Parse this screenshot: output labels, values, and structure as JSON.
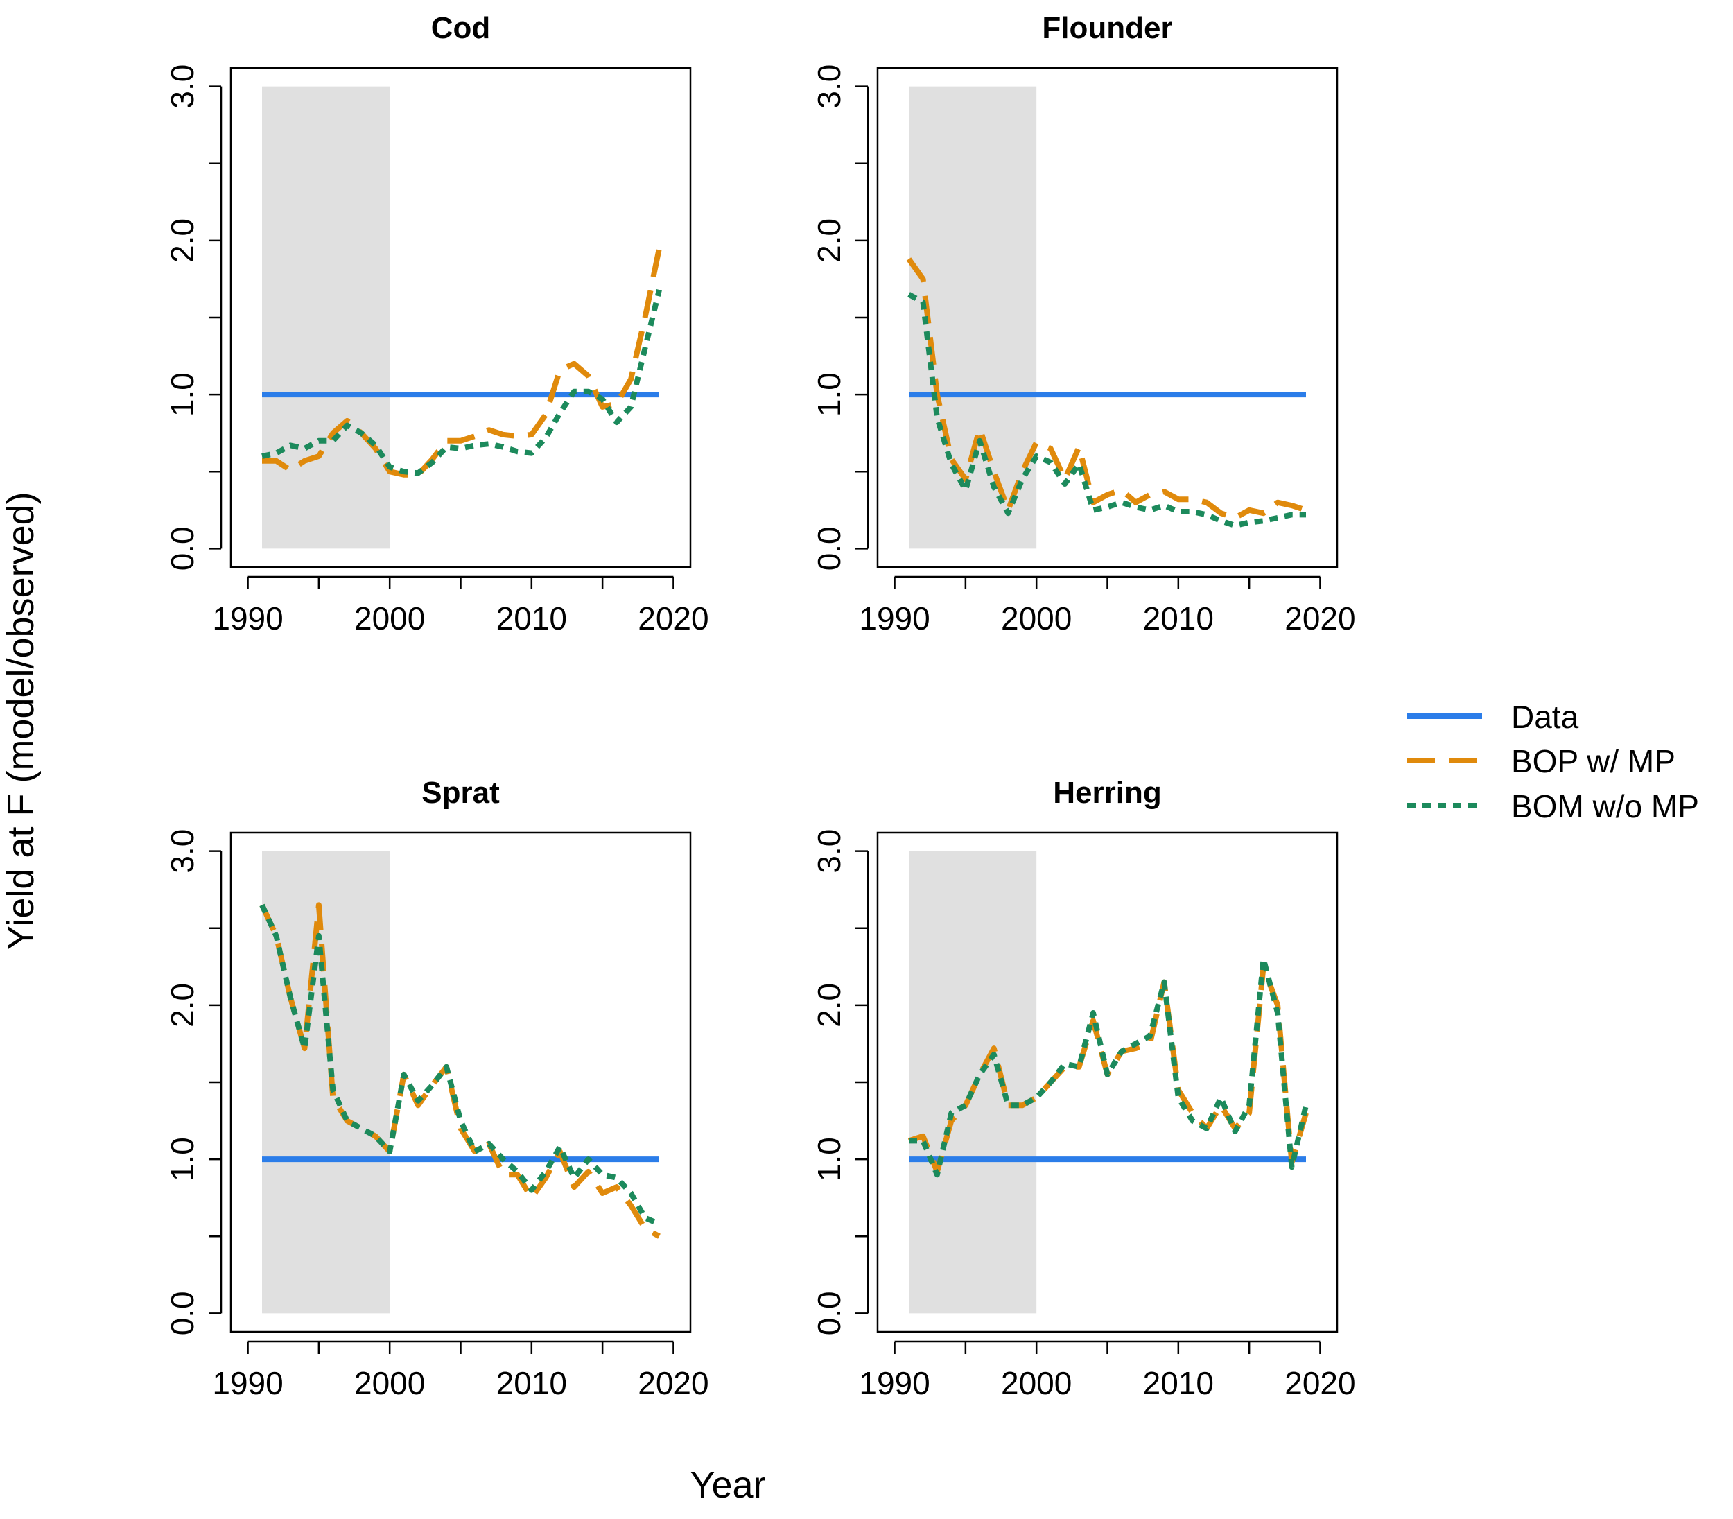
{
  "figure": {
    "ylabel": "Yield at F (model/observed)",
    "xlabel": "Year"
  },
  "legend": {
    "position": "right-center",
    "items": [
      {
        "label": "Data",
        "color": "#2b7de9",
        "style": "solid"
      },
      {
        "label": "BOP w/ MP",
        "color": "#e08a0c",
        "style": "dashed"
      },
      {
        "label": "BOM w/o MP",
        "color": "#1c8a5c",
        "style": "dotted"
      }
    ]
  },
  "chart_data": [
    {
      "type": "line",
      "title": "Cod",
      "xlim": [
        1990,
        2020
      ],
      "ylim": [
        0,
        3
      ],
      "xticks": [
        "1990",
        "2000",
        "2010",
        "2020"
      ],
      "yticks": [
        "0.0",
        "1.0",
        "2.0",
        "3.0"
      ],
      "shaded_period": [
        1991,
        2000
      ],
      "x": [
        1991,
        1992,
        1993,
        1994,
        1995,
        1996,
        1997,
        1998,
        1999,
        2000,
        2001,
        2002,
        2003,
        2004,
        2005,
        2006,
        2007,
        2008,
        2009,
        2010,
        2011,
        2012,
        2013,
        2014,
        2015,
        2016,
        2017,
        2018,
        2019
      ],
      "series": [
        {
          "name": "Data",
          "values": [
            1,
            1,
            1,
            1,
            1,
            1,
            1,
            1,
            1,
            1,
            1,
            1,
            1,
            1,
            1,
            1,
            1,
            1,
            1,
            1,
            1,
            1,
            1,
            1,
            1,
            1,
            1,
            1,
            1
          ]
        },
        {
          "name": "BOP w/ MP",
          "values": [
            0.57,
            0.57,
            0.51,
            0.57,
            0.6,
            0.75,
            0.83,
            0.75,
            0.65,
            0.5,
            0.48,
            0.48,
            0.58,
            0.7,
            0.7,
            0.73,
            0.77,
            0.74,
            0.73,
            0.74,
            0.87,
            1.16,
            1.2,
            1.12,
            0.92,
            0.94,
            1.1,
            1.5,
            1.95
          ]
        },
        {
          "name": "BOM w/o MP",
          "values": [
            0.6,
            0.62,
            0.67,
            0.65,
            0.7,
            0.7,
            0.8,
            0.75,
            0.67,
            0.53,
            0.5,
            0.49,
            0.56,
            0.66,
            0.65,
            0.67,
            0.68,
            0.66,
            0.63,
            0.62,
            0.72,
            0.88,
            1.02,
            1.02,
            0.97,
            0.82,
            0.92,
            1.3,
            1.68
          ]
        }
      ]
    },
    {
      "type": "line",
      "title": "Flounder",
      "xlim": [
        1990,
        2020
      ],
      "ylim": [
        0,
        3
      ],
      "xticks": [
        "1990",
        "2000",
        "2010",
        "2020"
      ],
      "yticks": [
        "0.0",
        "1.0",
        "2.0",
        "3.0"
      ],
      "shaded_period": [
        1991,
        2000
      ],
      "x": [
        1991,
        1992,
        1993,
        1994,
        1995,
        1996,
        1997,
        1998,
        1999,
        2000,
        2001,
        2002,
        2003,
        2004,
        2005,
        2006,
        2007,
        2008,
        2009,
        2010,
        2011,
        2012,
        2013,
        2014,
        2015,
        2016,
        2017,
        2018,
        2019
      ],
      "series": [
        {
          "name": "Data",
          "values": [
            1,
            1,
            1,
            1,
            1,
            1,
            1,
            1,
            1,
            1,
            1,
            1,
            1,
            1,
            1,
            1,
            1,
            1,
            1,
            1,
            1,
            1,
            1,
            1,
            1,
            1,
            1,
            1,
            1
          ]
        },
        {
          "name": "BOP w/ MP",
          "values": [
            1.88,
            1.75,
            1.0,
            0.58,
            0.45,
            0.78,
            0.5,
            0.25,
            0.5,
            0.69,
            0.65,
            0.45,
            0.66,
            0.3,
            0.35,
            0.38,
            0.3,
            0.35,
            0.37,
            0.32,
            0.32,
            0.3,
            0.23,
            0.2,
            0.25,
            0.23,
            0.3,
            0.28,
            0.25
          ]
        },
        {
          "name": "BOM w/o MP",
          "values": [
            1.65,
            1.6,
            0.85,
            0.55,
            0.38,
            0.7,
            0.4,
            0.23,
            0.45,
            0.6,
            0.56,
            0.42,
            0.55,
            0.25,
            0.27,
            0.3,
            0.27,
            0.25,
            0.28,
            0.24,
            0.24,
            0.22,
            0.18,
            0.15,
            0.17,
            0.18,
            0.2,
            0.22,
            0.22
          ]
        }
      ]
    },
    {
      "type": "line",
      "title": "Sprat",
      "xlim": [
        1990,
        2020
      ],
      "ylim": [
        0,
        3
      ],
      "xticks": [
        "1990",
        "2000",
        "2010",
        "2020"
      ],
      "yticks": [
        "0.0",
        "1.0",
        "2.0",
        "3.0"
      ],
      "shaded_period": [
        1991,
        2000
      ],
      "x": [
        1991,
        1992,
        1993,
        1994,
        1995,
        1996,
        1997,
        1998,
        1999,
        2000,
        2001,
        2002,
        2003,
        2004,
        2005,
        2006,
        2007,
        2008,
        2009,
        2010,
        2011,
        2012,
        2013,
        2014,
        2015,
        2016,
        2017,
        2018,
        2019
      ],
      "series": [
        {
          "name": "Data",
          "values": [
            1,
            1,
            1,
            1,
            1,
            1,
            1,
            1,
            1,
            1,
            1,
            1,
            1,
            1,
            1,
            1,
            1,
            1,
            1,
            1,
            1,
            1,
            1,
            1,
            1,
            1,
            1,
            1,
            1
          ]
        },
        {
          "name": "BOP w/ MP",
          "values": [
            2.65,
            2.45,
            2.05,
            1.72,
            2.65,
            1.4,
            1.25,
            1.2,
            1.15,
            1.05,
            1.55,
            1.35,
            1.48,
            1.6,
            1.2,
            1.05,
            1.1,
            0.9,
            0.9,
            0.75,
            0.88,
            1.05,
            0.82,
            0.92,
            0.78,
            0.82,
            0.7,
            0.55,
            0.5
          ]
        },
        {
          "name": "BOM w/o MP",
          "values": [
            2.65,
            2.45,
            2.05,
            1.72,
            2.45,
            1.45,
            1.25,
            1.2,
            1.15,
            1.05,
            1.55,
            1.38,
            1.48,
            1.6,
            1.25,
            1.05,
            1.1,
            1.0,
            0.92,
            0.8,
            0.92,
            1.08,
            0.88,
            1.0,
            0.9,
            0.88,
            0.78,
            0.62,
            0.58
          ]
        }
      ]
    },
    {
      "type": "line",
      "title": "Herring",
      "xlim": [
        1990,
        2020
      ],
      "ylim": [
        0,
        3
      ],
      "xticks": [
        "1990",
        "2000",
        "2010",
        "2020"
      ],
      "yticks": [
        "0.0",
        "1.0",
        "2.0",
        "3.0"
      ],
      "shaded_period": [
        1991,
        2000
      ],
      "x": [
        1991,
        1992,
        1993,
        1994,
        1995,
        1996,
        1997,
        1998,
        1999,
        2000,
        2001,
        2002,
        2003,
        2004,
        2005,
        2006,
        2007,
        2008,
        2009,
        2010,
        2011,
        2012,
        2013,
        2014,
        2015,
        2016,
        2017,
        2018,
        2019
      ],
      "series": [
        {
          "name": "Data",
          "values": [
            1,
            1,
            1,
            1,
            1,
            1,
            1,
            1,
            1,
            1,
            1,
            1,
            1,
            1,
            1,
            1,
            1,
            1,
            1,
            1,
            1,
            1,
            1,
            1,
            1,
            1,
            1,
            1,
            1
          ]
        },
        {
          "name": "BOP w/ MP",
          "values": [
            1.12,
            1.15,
            0.92,
            1.25,
            1.35,
            1.55,
            1.72,
            1.35,
            1.35,
            1.4,
            1.5,
            1.6,
            1.6,
            1.9,
            1.55,
            1.7,
            1.72,
            1.75,
            2.15,
            1.45,
            1.3,
            1.2,
            1.35,
            1.2,
            1.3,
            2.25,
            2.0,
            0.98,
            1.3
          ]
        },
        {
          "name": "BOM w/o MP",
          "values": [
            1.12,
            1.12,
            0.9,
            1.3,
            1.35,
            1.55,
            1.68,
            1.35,
            1.35,
            1.4,
            1.5,
            1.62,
            1.6,
            1.95,
            1.55,
            1.7,
            1.75,
            1.8,
            2.15,
            1.4,
            1.25,
            1.2,
            1.4,
            1.18,
            1.35,
            2.3,
            1.95,
            0.95,
            1.35
          ]
        }
      ]
    }
  ]
}
